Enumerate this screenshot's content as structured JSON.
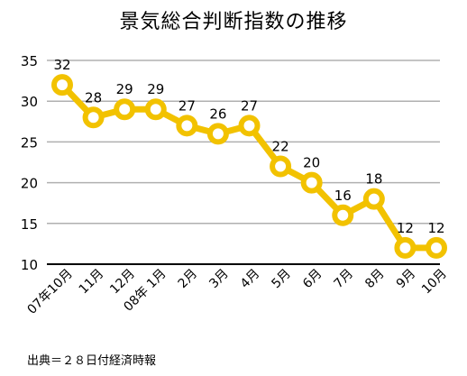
{
  "chart_data": {
    "type": "line",
    "title": "景気総合判断指数の推移",
    "source": "出典＝２８日付経済時報",
    "categories": [
      "07年10月",
      "11月",
      "12月",
      "08年 1月",
      "2月",
      "3月",
      "4月",
      "5月",
      "6月",
      "7月",
      "8月",
      "9月",
      "10月"
    ],
    "series": [
      {
        "values": [
          32,
          28,
          29,
          29,
          27,
          26,
          27,
          22,
          20,
          16,
          18,
          12,
          12
        ]
      }
    ],
    "ylim": [
      10,
      35
    ],
    "yticks": [
      "10",
      "15",
      "20",
      "25",
      "30",
      "35"
    ],
    "grid": true,
    "line_color": "#f2c200",
    "marker_fill": "#ffffff"
  }
}
